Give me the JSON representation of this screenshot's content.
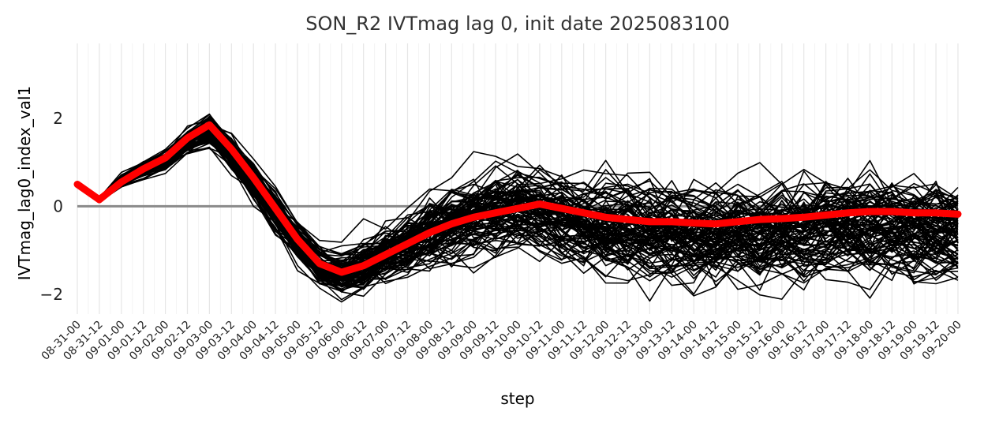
{
  "chart_data": {
    "type": "line",
    "title": "SON_R2 IVTmag lag 0, init date 2025083100",
    "xlabel": "step",
    "ylabel": "IVTmag_lag0_index_val1",
    "categories": [
      "08-31-00",
      "08-31-12",
      "09-01-00",
      "09-01-12",
      "09-02-00",
      "09-02-12",
      "09-03-00",
      "09-03-12",
      "09-04-00",
      "09-04-12",
      "09-05-00",
      "09-05-12",
      "09-06-00",
      "09-06-12",
      "09-07-00",
      "09-07-12",
      "09-08-00",
      "09-08-12",
      "09-09-00",
      "09-09-12",
      "09-10-00",
      "09-10-12",
      "09-11-00",
      "09-11-12",
      "09-12-00",
      "09-12-12",
      "09-13-00",
      "09-13-12",
      "09-14-00",
      "09-14-12",
      "09-15-00",
      "09-15-12",
      "09-16-00",
      "09-16-12",
      "09-17-00",
      "09-17-12",
      "09-18-00",
      "09-18-12",
      "09-19-00",
      "09-19-12",
      "09-20-00"
    ],
    "yticks": [
      -2,
      0,
      2
    ],
    "ylim": [
      -2.45,
      3.7
    ],
    "grid": true,
    "hline": 0,
    "ensemble": {
      "members": 100,
      "color": "#000000",
      "base_track": [
        0.5,
        0.15,
        0.6,
        0.85,
        1.1,
        1.5,
        1.75,
        1.25,
        0.6,
        -0.05,
        -0.75,
        -1.3,
        -1.5,
        -1.35,
        -1.05,
        -0.8,
        -0.55,
        -0.35,
        -0.2,
        -0.1,
        0.0,
        -0.05,
        -0.15,
        -0.3,
        -0.4,
        -0.45,
        -0.5,
        -0.55,
        -0.6,
        -0.6,
        -0.55,
        -0.55,
        -0.5,
        -0.45,
        -0.4,
        -0.35,
        -0.35,
        -0.4,
        -0.45,
        -0.5,
        -0.5
      ],
      "spread": [
        0.02,
        0.03,
        0.1,
        0.12,
        0.15,
        0.2,
        0.25,
        0.3,
        0.3,
        0.3,
        0.3,
        0.3,
        0.35,
        0.4,
        0.45,
        0.5,
        0.55,
        0.6,
        0.62,
        0.62,
        0.6,
        0.6,
        0.62,
        0.65,
        0.65,
        0.7,
        0.7,
        0.7,
        0.72,
        0.72,
        0.72,
        0.72,
        0.72,
        0.75,
        0.75,
        0.75,
        0.75,
        0.75,
        0.75,
        0.75,
        0.75
      ]
    },
    "series": [
      {
        "color": "#ff0000",
        "values": [
          0.5,
          0.15,
          0.55,
          0.85,
          1.1,
          1.55,
          1.85,
          1.3,
          0.65,
          -0.05,
          -0.75,
          -1.3,
          -1.5,
          -1.35,
          -1.1,
          -0.85,
          -0.6,
          -0.4,
          -0.25,
          -0.15,
          -0.05,
          0.05,
          -0.05,
          -0.15,
          -0.25,
          -0.3,
          -0.35,
          -0.35,
          -0.38,
          -0.4,
          -0.35,
          -0.3,
          -0.28,
          -0.25,
          -0.2,
          -0.15,
          -0.12,
          -0.12,
          -0.15,
          -0.15,
          -0.18
        ]
      }
    ]
  }
}
